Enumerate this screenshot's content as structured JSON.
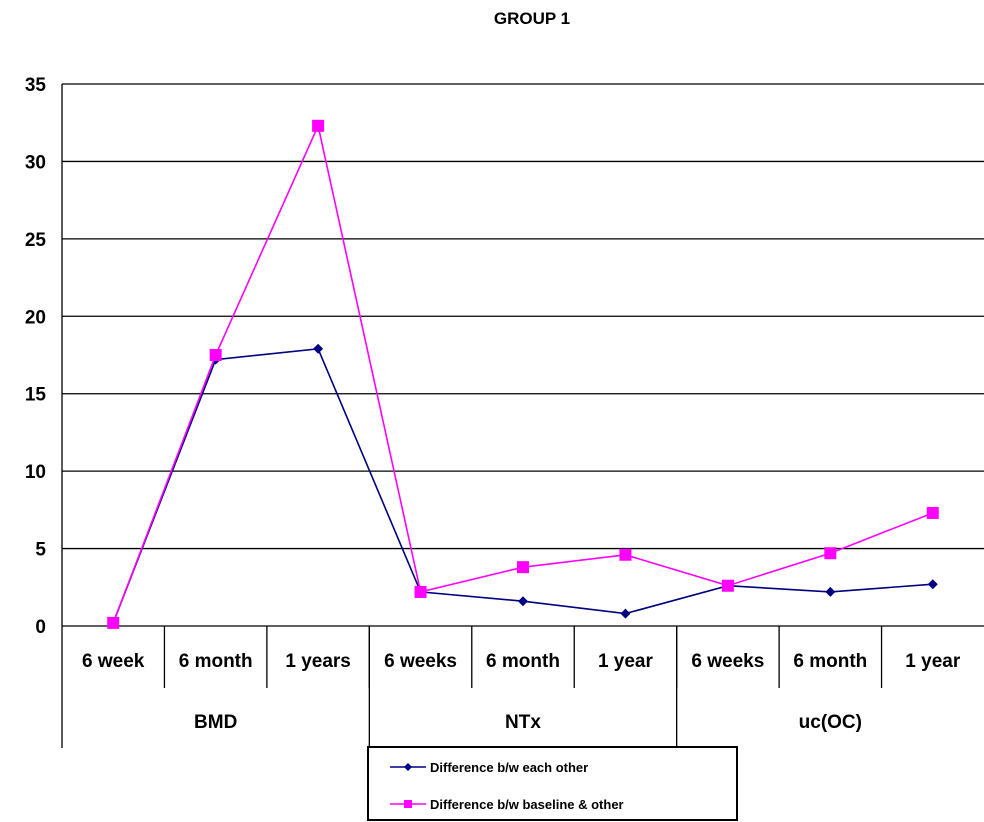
{
  "chart_data": {
    "type": "line",
    "title": "GROUP 1",
    "ylim": [
      0,
      35
    ],
    "yticks": [
      0,
      5,
      10,
      15,
      20,
      25,
      30,
      35
    ],
    "grid": true,
    "categories": [
      "6 week",
      "6 month",
      "1 years",
      "6 weeks",
      "6 month",
      "1 year",
      "6 weeks",
      "6 month",
      "1 year"
    ],
    "groups": [
      {
        "label": "BMD",
        "count": 3
      },
      {
        "label": "NTx",
        "count": 3
      },
      {
        "label": "uc(OC)",
        "count": 3
      }
    ],
    "series": [
      {
        "name": "Difference b/w each other",
        "color": "#000080",
        "marker": "diamond",
        "values": [
          0.2,
          17.2,
          17.9,
          2.2,
          1.6,
          0.8,
          2.6,
          2.2,
          2.7
        ]
      },
      {
        "name": "Difference b/w baseline & other",
        "color": "#ff00ff",
        "marker": "square",
        "values": [
          0.2,
          17.5,
          32.3,
          2.2,
          3.8,
          4.6,
          2.6,
          4.7,
          7.3
        ]
      }
    ],
    "legend_position": "bottom-center"
  }
}
